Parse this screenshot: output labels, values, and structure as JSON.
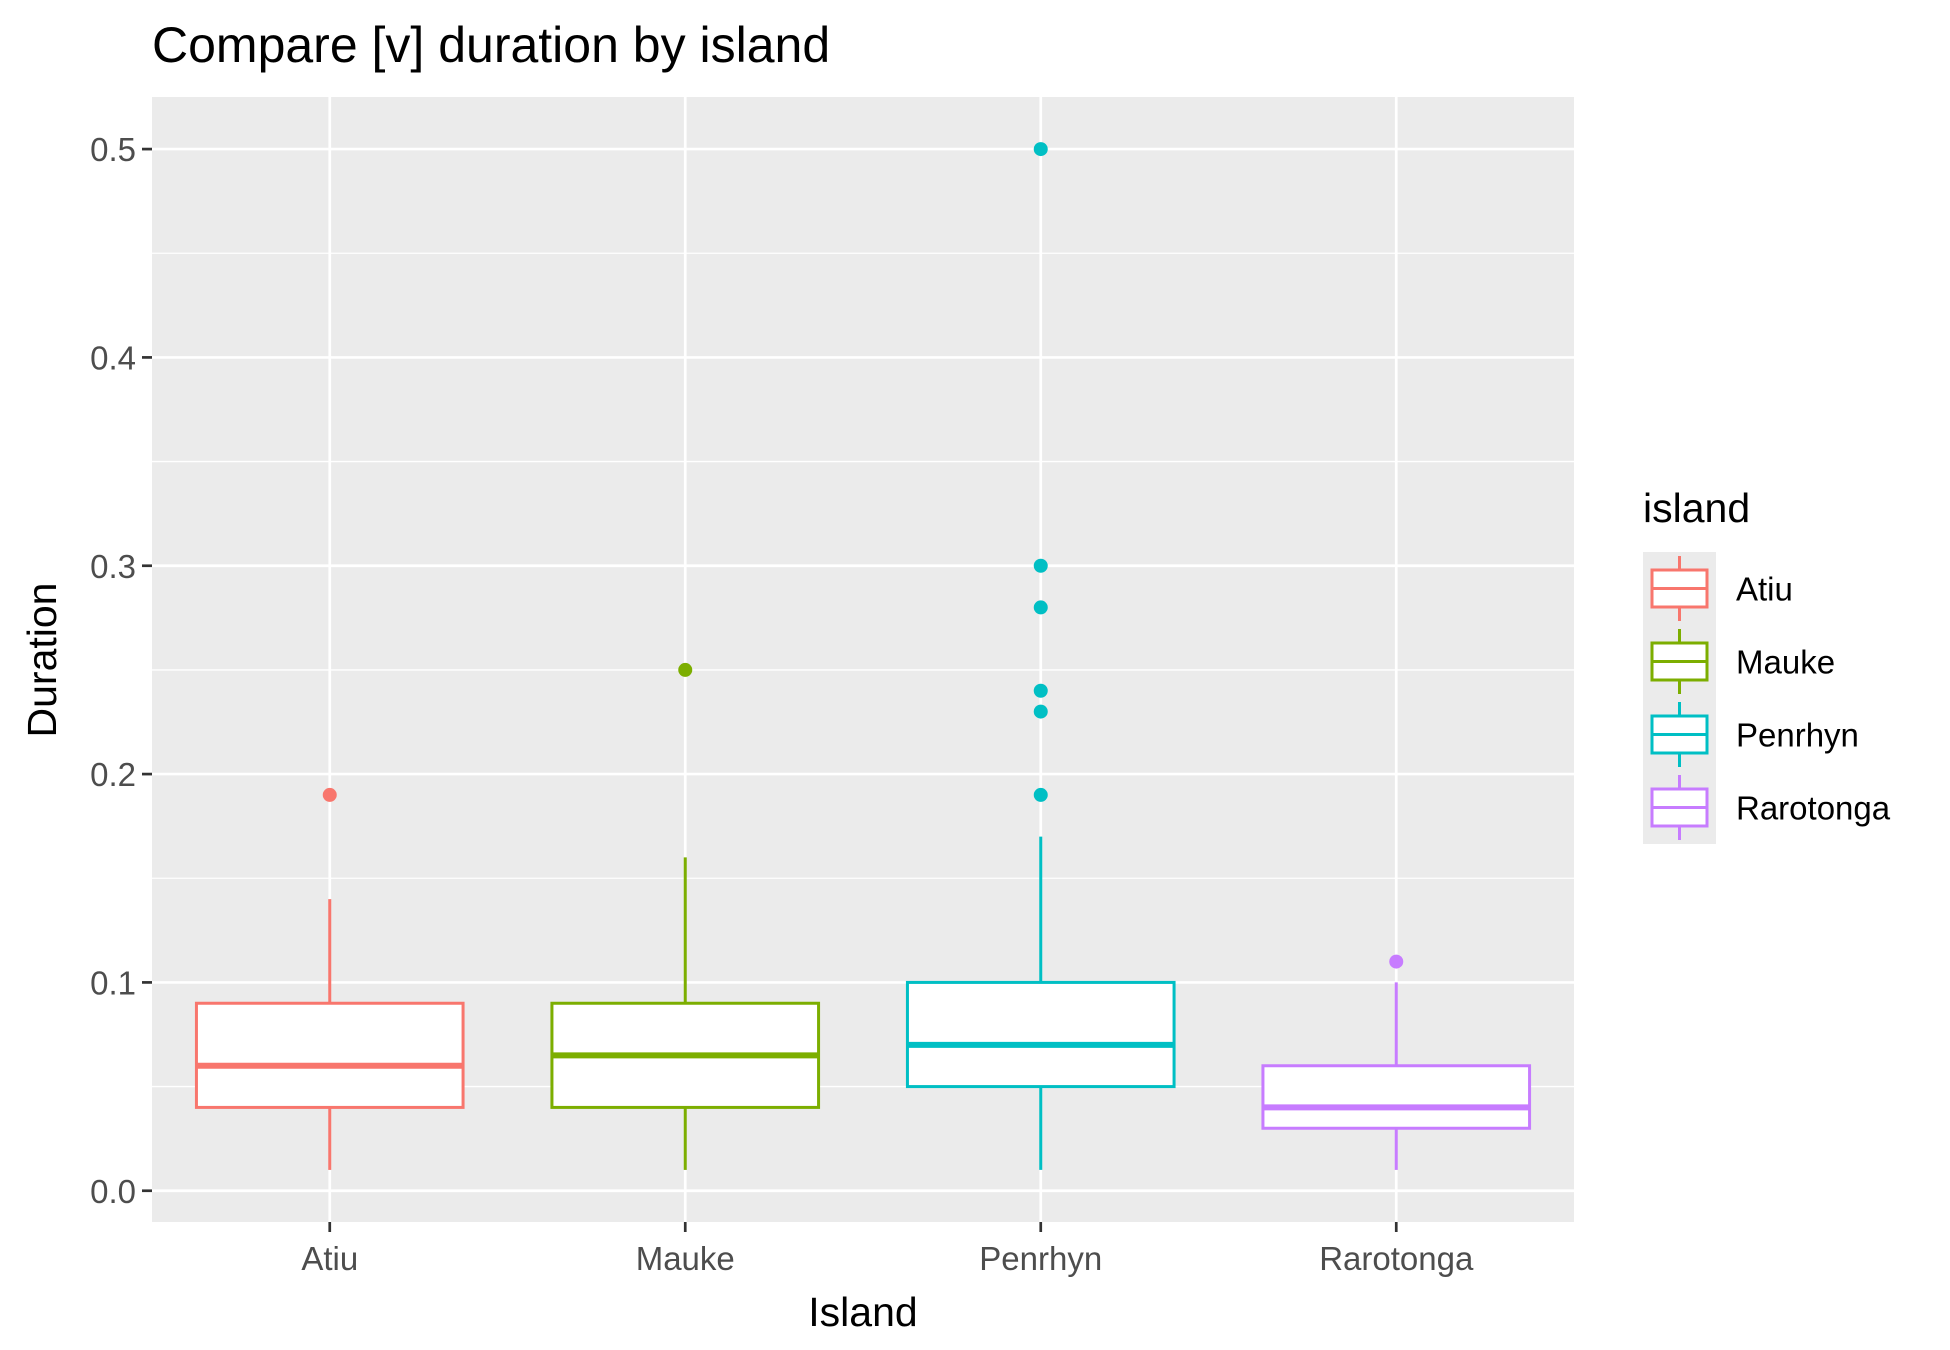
{
  "chart_data": {
    "type": "boxplot",
    "title": "Compare [v] duration by island",
    "xlabel": "Island",
    "ylabel": "Duration",
    "ylim": [
      -0.015,
      0.525
    ],
    "yticks": [
      "0.0",
      "0.1",
      "0.2",
      "0.3",
      "0.4",
      "0.5"
    ],
    "grid": true,
    "legend": {
      "title": "island",
      "placement": "right"
    },
    "series": [
      {
        "name": "Atiu",
        "color": "#F8766D",
        "lower_whisker": 0.01,
        "q1": 0.04,
        "median": 0.06,
        "q3": 0.09,
        "upper_whisker": 0.14,
        "outliers": [
          0.19
        ]
      },
      {
        "name": "Mauke",
        "color": "#7CAE00",
        "lower_whisker": 0.01,
        "q1": 0.04,
        "median": 0.065,
        "q3": 0.09,
        "upper_whisker": 0.16,
        "outliers": [
          0.25
        ]
      },
      {
        "name": "Penrhyn",
        "color": "#00BFC4",
        "lower_whisker": 0.01,
        "q1": 0.05,
        "median": 0.07,
        "q3": 0.1,
        "upper_whisker": 0.17,
        "outliers": [
          0.19,
          0.23,
          0.24,
          0.28,
          0.3,
          0.5
        ]
      },
      {
        "name": "Rarotonga",
        "color": "#C77CFF",
        "lower_whisker": 0.01,
        "q1": 0.03,
        "median": 0.04,
        "q3": 0.06,
        "upper_whisker": 0.1,
        "outliers": [
          0.11
        ]
      }
    ]
  }
}
